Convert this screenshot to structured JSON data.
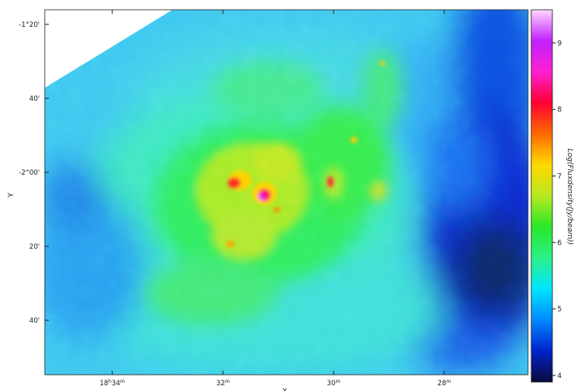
{
  "figure": {
    "ylabel": "Y",
    "xlabel": "X",
    "colorbar_label": "Log(Fluxdensity(Jy/beam))",
    "colormap": [
      "#0a0a3a",
      "#0022cc",
      "#0088ff",
      "#00e5ff",
      "#2cf08a",
      "#28e828",
      "#b8e820",
      "#ffd800",
      "#ff6a00",
      "#ff0033",
      "#ff20d0",
      "#c020ff",
      "#ffd8ff"
    ],
    "background_colors": {
      "frame": "#222222",
      "tick": "#222222",
      "blank": "#ffffff"
    }
  },
  "y_ticks": [
    {
      "label": "-1°20'"
    },
    {
      "label": "40'"
    },
    {
      "label": "-2°00'"
    },
    {
      "label": "20'"
    },
    {
      "label": "40'"
    }
  ],
  "x_ticks": [
    {
      "label_main": "18",
      "label_h": "h",
      "label_m": "34",
      "label_m_sup": "m"
    },
    {
      "label_main": "32",
      "label_m_sup": "m"
    },
    {
      "label_main": "30",
      "label_m_sup": "m"
    },
    {
      "label_main": "28",
      "label_m_sup": "m"
    }
  ],
  "colorbar_ticks": [
    "4",
    "5",
    "6",
    "7",
    "8",
    "9"
  ],
  "colorbar_range": [
    3.9,
    9.5
  ]
}
